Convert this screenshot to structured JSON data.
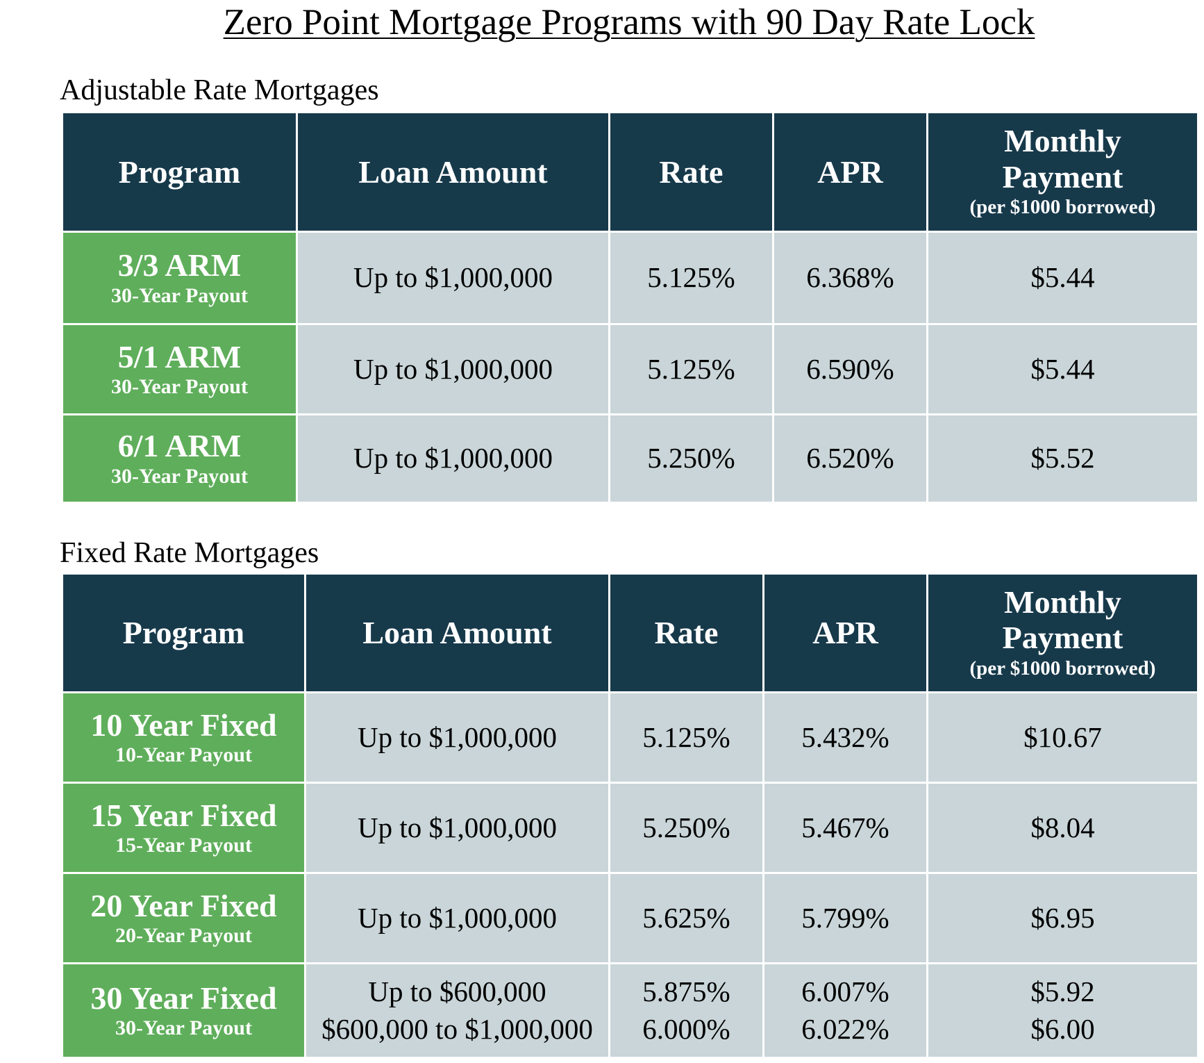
{
  "title": "Zero Point Mortgage Programs with 90 Day Rate Lock",
  "header": {
    "program": "Program",
    "loan_amount": "Loan Amount",
    "rate": "Rate",
    "apr": "APR",
    "payment_line1": "Monthly",
    "payment_line2": "Payment",
    "payment_sub": "(per $1000 borrowed)"
  },
  "arm": {
    "title": "Adjustable Rate Mortgages",
    "rows": [
      {
        "name": "3/3 ARM",
        "payout": "30-Year Payout",
        "loan": "Up to $1,000,000",
        "rate": "5.125%",
        "apr": "6.368%",
        "payment": "$5.44"
      },
      {
        "name": "5/1 ARM",
        "payout": "30-Year Payout",
        "loan": "Up to $1,000,000",
        "rate": "5.125%",
        "apr": "6.590%",
        "payment": "$5.44"
      },
      {
        "name": "6/1 ARM",
        "payout": "30-Year Payout",
        "loan": "Up to $1,000,000",
        "rate": "5.250%",
        "apr": "6.520%",
        "payment": "$5.52"
      }
    ]
  },
  "fixed": {
    "title": "Fixed Rate Mortgages",
    "rows": [
      {
        "name": "10 Year Fixed",
        "payout": "10-Year Payout",
        "loan": "Up to $1,000,000",
        "rate": "5.125%",
        "apr": "5.432%",
        "payment": "$10.67"
      },
      {
        "name": "15 Year Fixed",
        "payout": "15-Year Payout",
        "loan": "Up to $1,000,000",
        "rate": "5.250%",
        "apr": "5.467%",
        "payment": "$8.04"
      },
      {
        "name": "20 Year Fixed",
        "payout": "20-Year Payout",
        "loan": "Up to $1,000,000",
        "rate": "5.625%",
        "apr": "5.799%",
        "payment": "$6.95"
      },
      {
        "name": "30 Year Fixed",
        "payout": "30-Year Payout",
        "tiers": [
          {
            "loan": "Up to $600,000",
            "rate": "5.875%",
            "apr": "6.007%",
            "payment": "$5.92"
          },
          {
            "loan": "$600,000 to $1,000,000",
            "rate": "6.000%",
            "apr": "6.022%",
            "payment": "$6.00"
          }
        ]
      }
    ]
  }
}
